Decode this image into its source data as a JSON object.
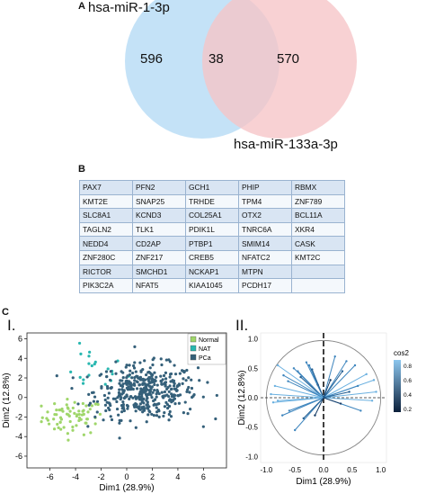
{
  "panelA": {
    "label": "A",
    "set1_name": "hsa-miR-1-3p",
    "set2_name": "hsa-miR-133a-3p",
    "only1": "596",
    "overlap": "38",
    "only2": "570",
    "colors": {
      "set1": "#bfe0f6",
      "set2": "#f6c4c7",
      "overlap": "#d7b6c8"
    }
  },
  "panelB": {
    "label": "B",
    "rows": [
      [
        "PAX7",
        "PFN2",
        "GCH1",
        "PHIP",
        "RBMX"
      ],
      [
        "KMT2E",
        "SNAP25",
        "TRHDE",
        "TPM4",
        "ZNF789"
      ],
      [
        "SLC8A1",
        "KCND3",
        "COL25A1",
        "OTX2",
        "BCL11A"
      ],
      [
        "TAGLN2",
        "TLK1",
        "PDIK1L",
        "TNRC6A",
        "XKR4"
      ],
      [
        "NEDD4",
        "CD2AP",
        "PTBP1",
        "SMIM14",
        "CASK"
      ],
      [
        "ZNF280C",
        "ZNF217",
        "CREB5",
        "NFATC2",
        "KMT2C"
      ],
      [
        "RICTOR",
        "SMCHD1",
        "NCKAP1",
        "MTPN",
        ""
      ],
      [
        "PIK3C2A",
        "NFAT5",
        "KIAA1045",
        "PCDH17",
        ""
      ]
    ]
  },
  "panelC": {
    "label": "C",
    "sub1": "I.",
    "sub2": "II."
  },
  "chart_data": [
    {
      "type": "scatter",
      "xlabel": "Dim1 (28.9%)",
      "ylabel": "Dim2 (12.8%)",
      "xticks": [
        "-6",
        "-4",
        "-2",
        "0",
        "2",
        "4",
        "6"
      ],
      "yticks": [
        "-6",
        "-4",
        "-2",
        "0",
        "2",
        "4",
        "6"
      ],
      "xlim": [
        -7.8,
        7.8
      ],
      "ylim": [
        -7.2,
        6.6
      ],
      "legend_position": "top-right",
      "series": [
        {
          "name": "Normal",
          "color": "#9fd66a",
          "center": [
            -4.2,
            -2.0
          ],
          "spread": [
            1.2,
            0.9
          ],
          "count": 70
        },
        {
          "name": "NAT",
          "color": "#28b7b0",
          "center": [
            -2.8,
            2.8
          ],
          "spread": [
            1.4,
            1.1
          ],
          "count": 20
        },
        {
          "name": "PCa",
          "color": "#35607a",
          "center": [
            1.5,
            0.6
          ],
          "spread": [
            2.0,
            1.4
          ],
          "count": 420
        }
      ]
    },
    {
      "type": "line",
      "xlabel": "Dim1 (28.9%)",
      "ylabel": "Dim2 (12.8%)",
      "xticks": [
        "-1.0",
        "-0.5",
        "0.0",
        "0.5",
        "1.0"
      ],
      "yticks": [
        "-1.0",
        "-0.5",
        "0.0",
        "0.5",
        "1.0"
      ],
      "xlim": [
        -1.1,
        1.1
      ],
      "ylim": [
        -1.1,
        1.1
      ],
      "colorbar": {
        "title": "cos2",
        "ticks": [
          "0.8",
          "0.6",
          "0.4",
          "0.2"
        ]
      },
      "vectors": [
        [
          0.75,
          0.4
        ],
        [
          0.88,
          0.3
        ],
        [
          0.92,
          0.1
        ],
        [
          0.55,
          0.55
        ],
        [
          0.4,
          0.62
        ],
        [
          0.2,
          0.7
        ],
        [
          0.12,
          0.3
        ],
        [
          0.33,
          0.45
        ],
        [
          0.65,
          -0.22
        ],
        [
          0.85,
          -0.05
        ],
        [
          0.6,
          0.2
        ],
        [
          -0.3,
          0.6
        ],
        [
          -0.52,
          0.5
        ],
        [
          -0.7,
          0.38
        ],
        [
          -0.85,
          0.2
        ],
        [
          -0.92,
          0.06
        ],
        [
          -0.88,
          -0.08
        ],
        [
          -0.62,
          0.28
        ],
        [
          -0.4,
          0.35
        ],
        [
          -0.1,
          0.22
        ],
        [
          -0.6,
          -0.22
        ],
        [
          -0.72,
          -0.3
        ],
        [
          -0.25,
          0.55
        ],
        [
          -0.45,
          0.45
        ],
        [
          -0.8,
          -0.05
        ],
        [
          -0.5,
          -0.55
        ],
        [
          -0.35,
          -0.35
        ],
        [
          -0.15,
          -0.3
        ],
        [
          -0.8,
          0.55
        ],
        [
          0.45,
          0.1
        ],
        [
          0.3,
          -0.1
        ],
        [
          -0.2,
          0.48
        ]
      ]
    }
  ]
}
